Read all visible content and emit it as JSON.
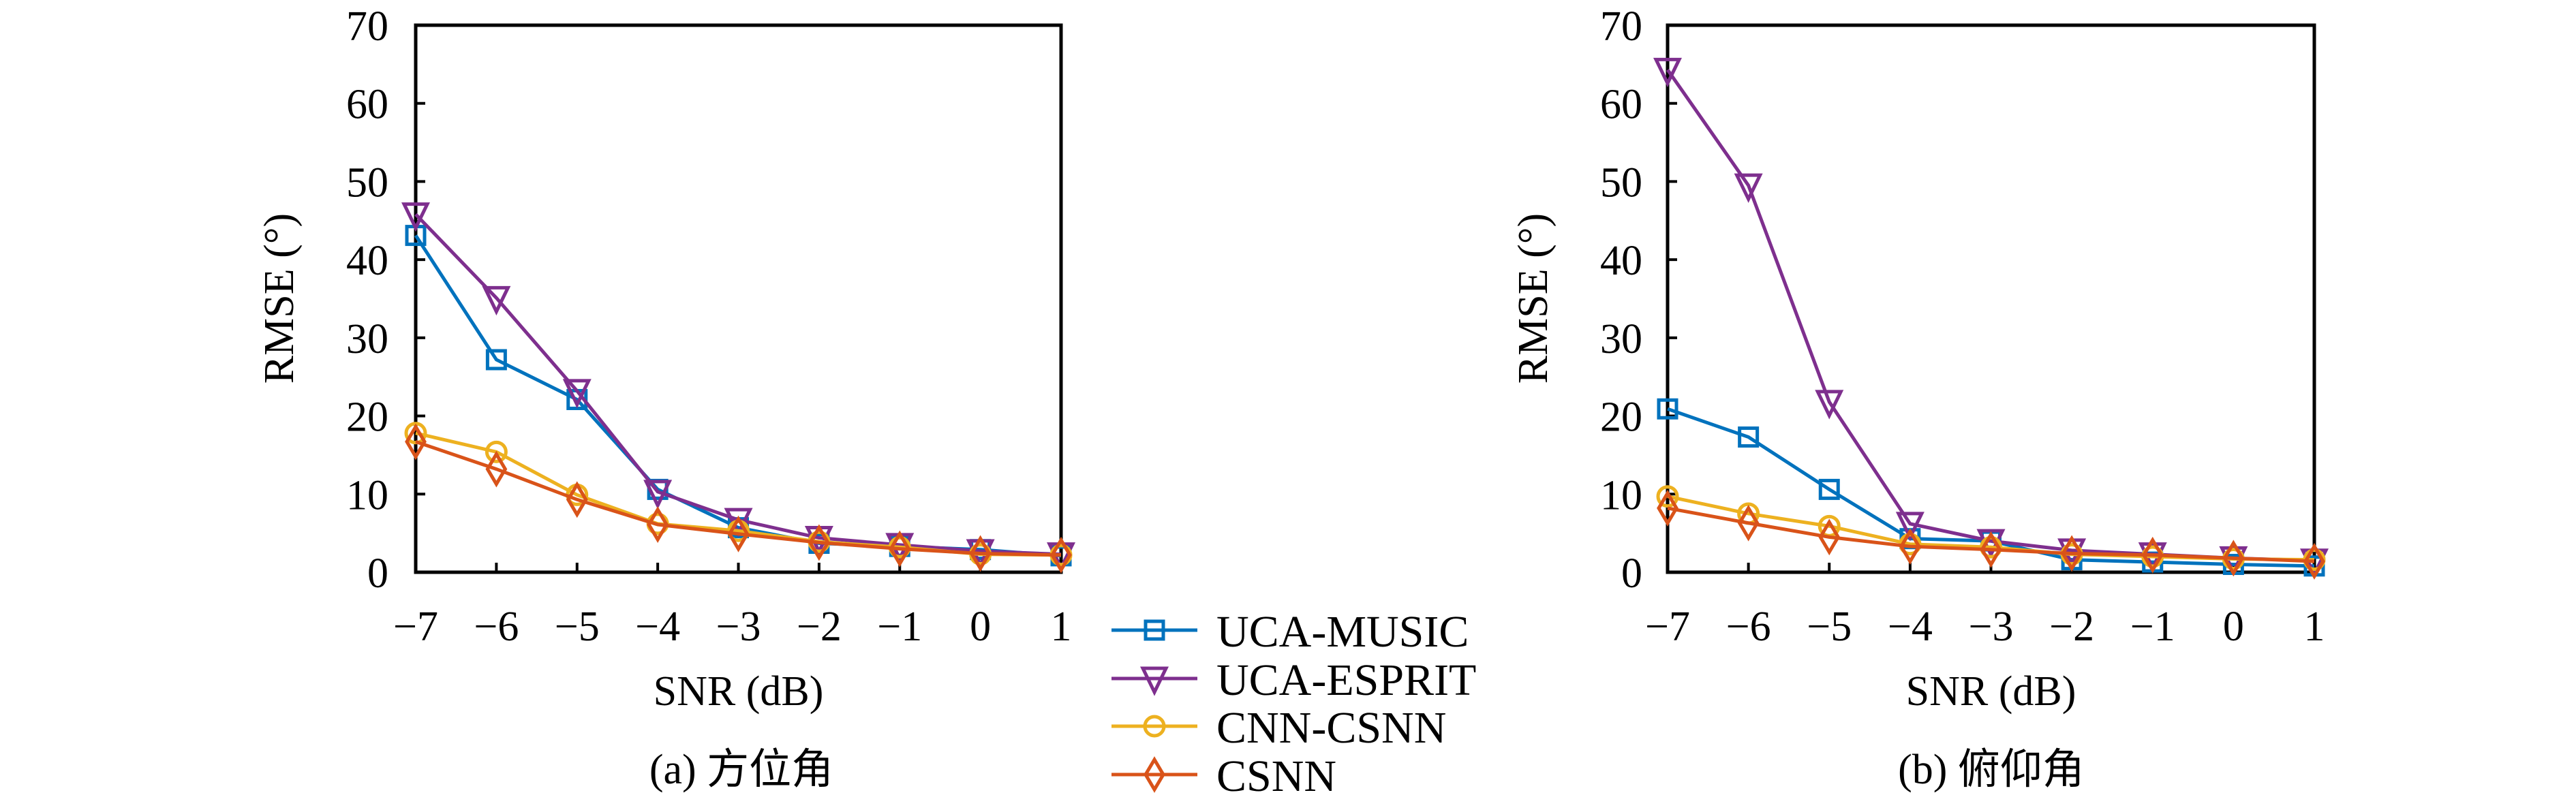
{
  "chart_data": [
    {
      "type": "line",
      "caption": "(a) 方位角",
      "xlabel": "SNR (dB)",
      "ylabel": "RMSE (°)",
      "x": [
        -7,
        -6,
        -5,
        -4,
        -3,
        -2,
        -1,
        0,
        1
      ],
      "xticks": [
        "−7",
        "−6",
        "−5",
        "−4",
        "−3",
        "−2",
        "−1",
        "0",
        "1"
      ],
      "yticks": [
        "0",
        "10",
        "20",
        "30",
        "40",
        "50",
        "60",
        "70"
      ],
      "xlim": [
        -7,
        1
      ],
      "ylim": [
        0,
        70
      ],
      "grid": false,
      "series": [
        {
          "name": "UCA-MUSIC",
          "values": [
            43.1,
            27.2,
            22.1,
            10.6,
            5.7,
            3.7,
            3.3,
            2.9,
            2.1
          ]
        },
        {
          "name": "UCA-ESPRIT",
          "values": [
            45.8,
            35.1,
            23.2,
            10.3,
            6.7,
            4.4,
            3.5,
            2.7,
            2.3
          ]
        },
        {
          "name": "CNN-CSNN",
          "values": [
            17.8,
            15.4,
            9.9,
            6.2,
            5.3,
            3.9,
            3.2,
            2.3,
            2.2
          ]
        },
        {
          "name": "CSNN",
          "values": [
            16.7,
            13.2,
            9.3,
            6.1,
            4.9,
            3.8,
            3.0,
            2.4,
            2.2
          ]
        }
      ]
    },
    {
      "type": "line",
      "caption": "(b) 俯仰角",
      "xlabel": "SNR (dB)",
      "ylabel": "RMSE (°)",
      "x": [
        -7,
        -6,
        -5,
        -4,
        -3,
        -2,
        -1,
        0,
        1
      ],
      "xticks": [
        "−7",
        "−6",
        "−5",
        "−4",
        "−3",
        "−2",
        "−1",
        "0",
        "1"
      ],
      "yticks": [
        "0",
        "10",
        "20",
        "30",
        "40",
        "50",
        "60",
        "70"
      ],
      "xlim": [
        -7,
        1
      ],
      "ylim": [
        0,
        70
      ],
      "grid": false,
      "series": [
        {
          "name": "UCA-MUSIC",
          "values": [
            20.9,
            17.3,
            10.6,
            4.3,
            4.0,
            1.6,
            1.3,
            1.0,
            0.8
          ]
        },
        {
          "name": "UCA-ESPRIT",
          "values": [
            64.3,
            49.5,
            21.8,
            6.2,
            4.0,
            2.8,
            2.3,
            1.8,
            1.5
          ]
        },
        {
          "name": "CNN-CSNN",
          "values": [
            9.7,
            7.5,
            5.9,
            3.6,
            3.2,
            2.3,
            2.0,
            1.7,
            1.6
          ]
        },
        {
          "name": "CSNN",
          "values": [
            8.2,
            6.3,
            4.5,
            3.3,
            2.9,
            2.4,
            2.2,
            1.8,
            1.4
          ]
        }
      ]
    }
  ],
  "legend": {
    "placement": "center-bottom",
    "entries": [
      {
        "name": "UCA-MUSIC",
        "color": "#0072BD",
        "marker": "square"
      },
      {
        "name": "UCA-ESPRIT",
        "color": "#7E2F8E",
        "marker": "triangle-down"
      },
      {
        "name": "CNN-CSNN",
        "color": "#EDB120",
        "marker": "circle"
      },
      {
        "name": "CSNN",
        "color": "#D95319",
        "marker": "diamond"
      }
    ]
  }
}
